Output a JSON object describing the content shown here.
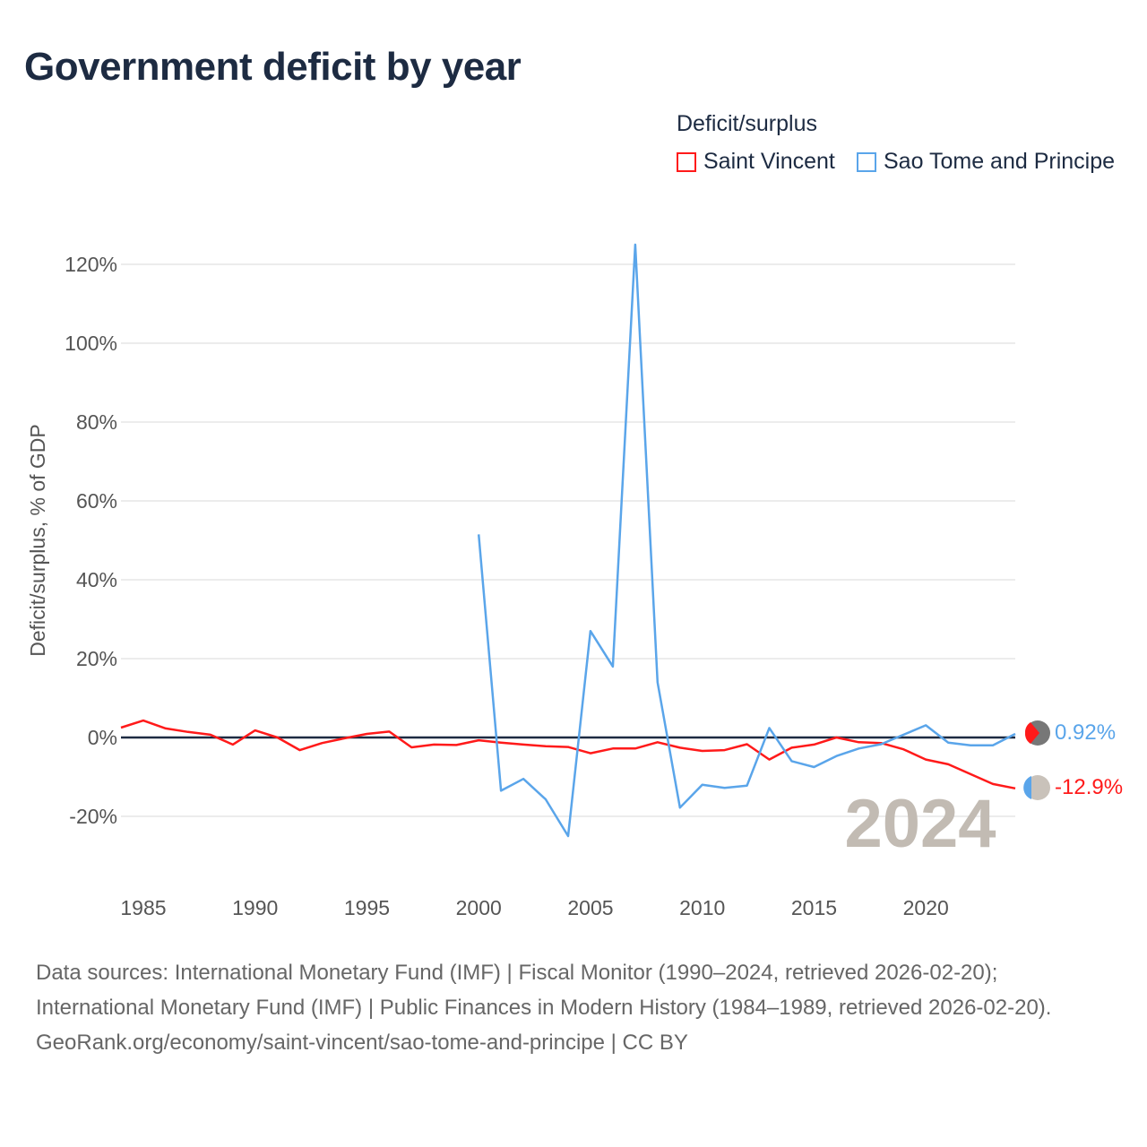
{
  "title": "Government deficit by year",
  "legend": {
    "title": "Deficit/surplus",
    "items": [
      {
        "name": "Saint Vincent",
        "color": "#ff1a1a"
      },
      {
        "name": "Sao Tome and Principe",
        "color": "#5aa5ea"
      }
    ]
  },
  "year_label": "2024",
  "end_labels": {
    "sao_tome": "0.92%",
    "saint_vincent": "-12.9%"
  },
  "chart_data": {
    "type": "line",
    "title": "Government deficit by year",
    "xlabel": "",
    "ylabel": "Deficit/surplus, % of GDP",
    "xlim": [
      1984,
      2024
    ],
    "ylim": [
      -30,
      125
    ],
    "x_ticks": [
      1985,
      1990,
      1995,
      2000,
      2005,
      2010,
      2015,
      2020
    ],
    "y_ticks": [
      -20,
      0,
      20,
      40,
      60,
      80,
      100,
      120
    ],
    "y_tick_labels": [
      "-20%",
      "0%",
      "20%",
      "40%",
      "60%",
      "80%",
      "100%",
      "120%"
    ],
    "grid": true,
    "legend_position": "top-right",
    "series": [
      {
        "name": "Saint Vincent",
        "color": "#ff1a1a",
        "start_year": 1984,
        "values": [
          2.5,
          4.3,
          2.3,
          1.4,
          0.7,
          -1.8,
          1.8,
          0,
          -3.2,
          -1.4,
          -0.2,
          0.9,
          1.5,
          -2.5,
          -1.8,
          -1.9,
          -0.7,
          -1.3,
          -1.8,
          -2.2,
          -2.4,
          -4,
          -2.8,
          -2.8,
          -1.2,
          -2.6,
          -3.4,
          -3.2,
          -1.7,
          -5.6,
          -2.6,
          -1.8,
          0,
          -1.2,
          -1.4,
          -3,
          -5.6,
          -6.8,
          -9.3,
          -11.8,
          -12.9
        ]
      },
      {
        "name": "Sao Tome and Principe",
        "color": "#5aa5ea",
        "start_year": 2000,
        "values": [
          51.5,
          -13.5,
          -10.5,
          -15.7,
          -25,
          27,
          18,
          125,
          14,
          -17.8,
          -12,
          -12.8,
          -12.2,
          2.4,
          -6,
          -7.5,
          -4.7,
          -2.8,
          -1.7,
          0.7,
          3.1,
          -1.3,
          -2,
          -2,
          0.92
        ]
      }
    ]
  },
  "footer": {
    "line1": "Data sources: International Monetary Fund (IMF) | Fiscal Monitor (1990–2024, retrieved 2026-02-20); International Monetary Fund (IMF) | Public Finances in Modern History (1984–1989, retrieved 2026-02-20).",
    "line2": "GeoRank.org/economy/saint-vincent/sao-tome-and-principe | CC BY"
  }
}
